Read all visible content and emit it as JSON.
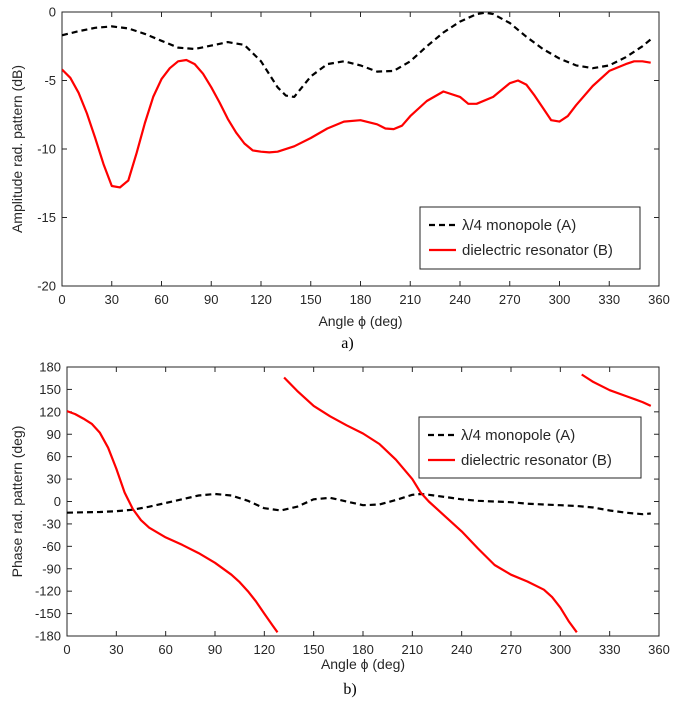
{
  "chart_data": [
    {
      "type": "line",
      "caption": "a)",
      "xlabel": "Angle ϕ (deg)",
      "ylabel": "Amplitude rad. pattern (dB)",
      "xlim": [
        0,
        360
      ],
      "ylim": [
        -20,
        0
      ],
      "xticks": [
        0,
        30,
        60,
        90,
        120,
        150,
        180,
        210,
        240,
        270,
        300,
        330,
        360
      ],
      "yticks": [
        0,
        -5,
        -10,
        -15,
        -20
      ],
      "grid": false,
      "legend_position": "bottom-right",
      "series": [
        {
          "name": "λ/4 monopole (A)",
          "color": "#000000",
          "style": "dashed",
          "x": [
            0,
            10,
            20,
            30,
            40,
            50,
            60,
            70,
            80,
            90,
            100,
            110,
            120,
            130,
            135,
            140,
            150,
            160,
            170,
            180,
            190,
            200,
            210,
            220,
            230,
            240,
            250,
            255,
            260,
            270,
            280,
            290,
            300,
            310,
            320,
            325,
            330,
            340,
            350,
            355
          ],
          "values": [
            -1.7,
            -1.4,
            -1.15,
            -1.05,
            -1.2,
            -1.6,
            -2.1,
            -2.6,
            -2.7,
            -2.45,
            -2.2,
            -2.4,
            -3.6,
            -5.5,
            -6.1,
            -6.2,
            -4.7,
            -3.8,
            -3.6,
            -3.9,
            -4.35,
            -4.3,
            -3.6,
            -2.5,
            -1.5,
            -0.7,
            -0.15,
            -0.05,
            -0.15,
            -0.8,
            -1.8,
            -2.7,
            -3.4,
            -3.9,
            -4.1,
            -4.0,
            -3.9,
            -3.3,
            -2.5,
            -2.0
          ]
        },
        {
          "name": "dielectric resonator (B)",
          "color": "#ff0000",
          "style": "solid",
          "x": [
            0,
            5,
            10,
            15,
            20,
            25,
            30,
            35,
            40,
            45,
            50,
            55,
            60,
            65,
            70,
            75,
            80,
            85,
            90,
            95,
            100,
            105,
            110,
            115,
            120,
            125,
            130,
            140,
            150,
            160,
            170,
            180,
            190,
            195,
            200,
            205,
            210,
            220,
            230,
            240,
            245,
            250,
            260,
            270,
            275,
            280,
            285,
            290,
            295,
            300,
            305,
            310,
            320,
            330,
            340,
            345,
            350,
            355
          ],
          "values": [
            -4.2,
            -4.8,
            -5.9,
            -7.4,
            -9.2,
            -11.1,
            -12.7,
            -12.8,
            -12.3,
            -10.3,
            -8.1,
            -6.2,
            -4.9,
            -4.1,
            -3.6,
            -3.5,
            -3.8,
            -4.5,
            -5.5,
            -6.6,
            -7.8,
            -8.8,
            -9.6,
            -10.1,
            -10.2,
            -10.25,
            -10.2,
            -9.8,
            -9.2,
            -8.5,
            -8.0,
            -7.9,
            -8.2,
            -8.5,
            -8.55,
            -8.3,
            -7.6,
            -6.5,
            -5.8,
            -6.2,
            -6.7,
            -6.7,
            -6.2,
            -5.2,
            -5.0,
            -5.3,
            -6.1,
            -7.0,
            -7.9,
            -8.0,
            -7.6,
            -6.8,
            -5.4,
            -4.3,
            -3.8,
            -3.6,
            -3.6,
            -3.7
          ]
        }
      ]
    },
    {
      "type": "line",
      "caption": "b)",
      "xlabel": "Angle ϕ (deg)",
      "ylabel": "Phase rad. pattern (deg)",
      "xlim": [
        0,
        360
      ],
      "ylim": [
        -180,
        180
      ],
      "xticks": [
        0,
        30,
        60,
        90,
        120,
        150,
        180,
        210,
        240,
        270,
        300,
        330,
        360
      ],
      "yticks": [
        180,
        150,
        120,
        90,
        60,
        30,
        0,
        -30,
        -60,
        -90,
        -120,
        -150,
        -180
      ],
      "grid": false,
      "legend_position": "top-right",
      "series": [
        {
          "name": "λ/4 monopole (A)",
          "color": "#000000",
          "style": "dashed",
          "x": [
            0,
            10,
            20,
            30,
            40,
            50,
            60,
            70,
            80,
            90,
            100,
            110,
            120,
            130,
            140,
            150,
            160,
            170,
            180,
            190,
            200,
            210,
            215,
            220,
            230,
            240,
            250,
            260,
            270,
            280,
            290,
            300,
            310,
            320,
            330,
            340,
            350,
            355
          ],
          "values": [
            -15,
            -14.5,
            -14,
            -13,
            -11,
            -7,
            -2,
            3,
            8,
            10,
            8,
            1,
            -9,
            -12,
            -7,
            3,
            5,
            0,
            -5,
            -4,
            2,
            9,
            10,
            9,
            6,
            3,
            1,
            0,
            -1,
            -3,
            -4,
            -5,
            -6,
            -8,
            -12,
            -15,
            -17,
            -16
          ]
        },
        {
          "name": "dielectric resonator (B)",
          "color": "#ff0000",
          "style": "solid",
          "segments": [
            {
              "x": [
                0,
                5,
                10,
                15,
                20,
                25,
                30,
                35,
                40,
                45,
                50,
                60,
                70,
                80,
                90,
                100,
                105,
                110,
                115,
                120,
                125,
                128
              ],
              "values": [
                121,
                117,
                111,
                104,
                92,
                72,
                44,
                12,
                -10,
                -25,
                -35,
                -48,
                -58,
                -69,
                -82,
                -98,
                -108,
                -120,
                -134,
                -150,
                -166,
                -175
              ]
            },
            {
              "x": [
                132,
                140,
                150,
                160,
                170,
                180,
                190,
                200,
                210,
                215,
                220,
                230,
                240,
                250,
                260,
                270,
                280,
                290,
                295,
                300,
                305,
                310
              ],
              "values": [
                166,
                148,
                128,
                114,
                102,
                91,
                77,
                56,
                30,
                12,
                0,
                -20,
                -40,
                -63,
                -85,
                -98,
                -107,
                -118,
                -128,
                -142,
                -160,
                -175
              ]
            },
            {
              "x": [
                313,
                320,
                330,
                340,
                350,
                355
              ],
              "values": [
                170,
                160,
                149,
                141,
                133,
                128
              ]
            }
          ]
        }
      ]
    }
  ]
}
